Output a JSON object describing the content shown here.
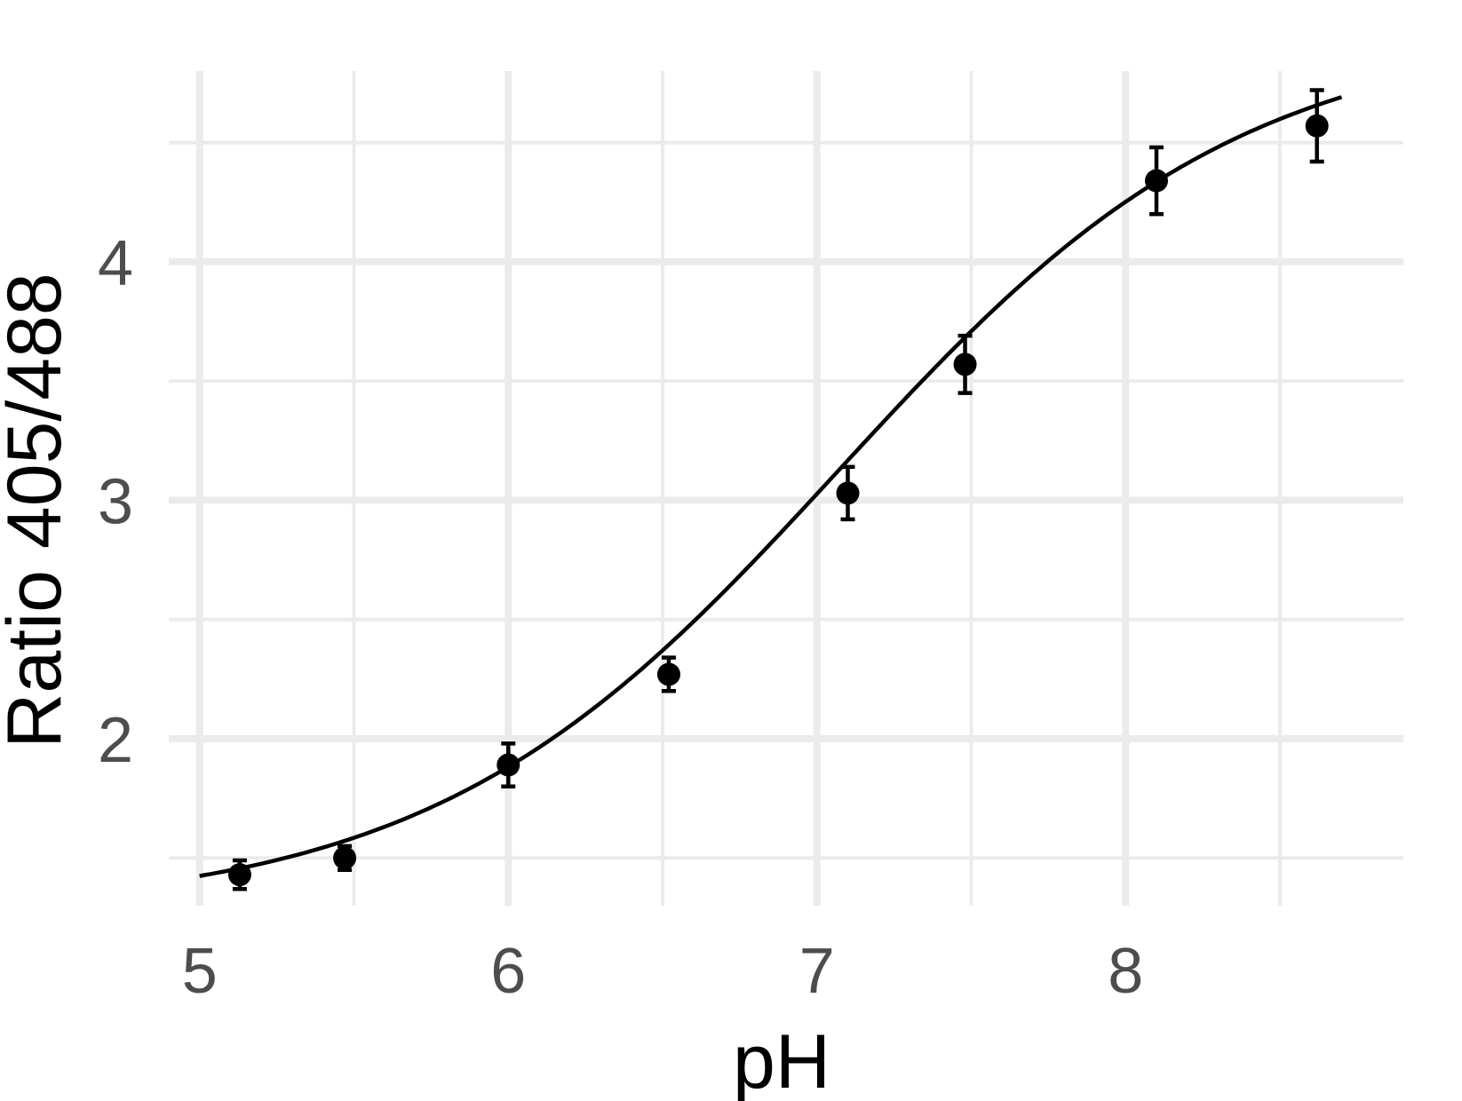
{
  "chart_data": {
    "type": "scatter",
    "xlabel": "pH",
    "ylabel": "Ratio 405/488",
    "xlim": [
      4.9,
      8.9
    ],
    "ylim": [
      1.3,
      4.8
    ],
    "x_major_ticks": [
      5,
      6,
      7,
      8
    ],
    "x_minor_ticks": [
      5.5,
      6.5,
      7.5,
      8.5
    ],
    "y_major_ticks": [
      2,
      3,
      4
    ],
    "y_minor_ticks": [
      1.5,
      2.5,
      3.5,
      4.5
    ],
    "x_tick_labels": [
      "5",
      "6",
      "7",
      "8"
    ],
    "y_tick_labels": [
      "2",
      "3",
      "4"
    ],
    "grid": true,
    "colors": {
      "grid": "#ebebeb",
      "marks": "#000000",
      "tick_text": "#4d4d4d"
    },
    "points": [
      {
        "x": 5.13,
        "y": 1.43,
        "err": 0.06
      },
      {
        "x": 5.47,
        "y": 1.5,
        "err": 0.05
      },
      {
        "x": 6.0,
        "y": 1.89,
        "err": 0.09
      },
      {
        "x": 6.52,
        "y": 2.27,
        "err": 0.07
      },
      {
        "x": 7.1,
        "y": 3.03,
        "err": 0.11
      },
      {
        "x": 7.48,
        "y": 3.57,
        "err": 0.12
      },
      {
        "x": 8.1,
        "y": 4.34,
        "err": 0.14
      },
      {
        "x": 8.62,
        "y": 4.57,
        "err": 0.15
      }
    ],
    "fit_curve": {
      "model": "sigmoid",
      "bottom": 1.27,
      "top": 4.98,
      "midpoint": 7.07,
      "slope": 0.66,
      "x_range": [
        5.0,
        8.7
      ]
    }
  }
}
